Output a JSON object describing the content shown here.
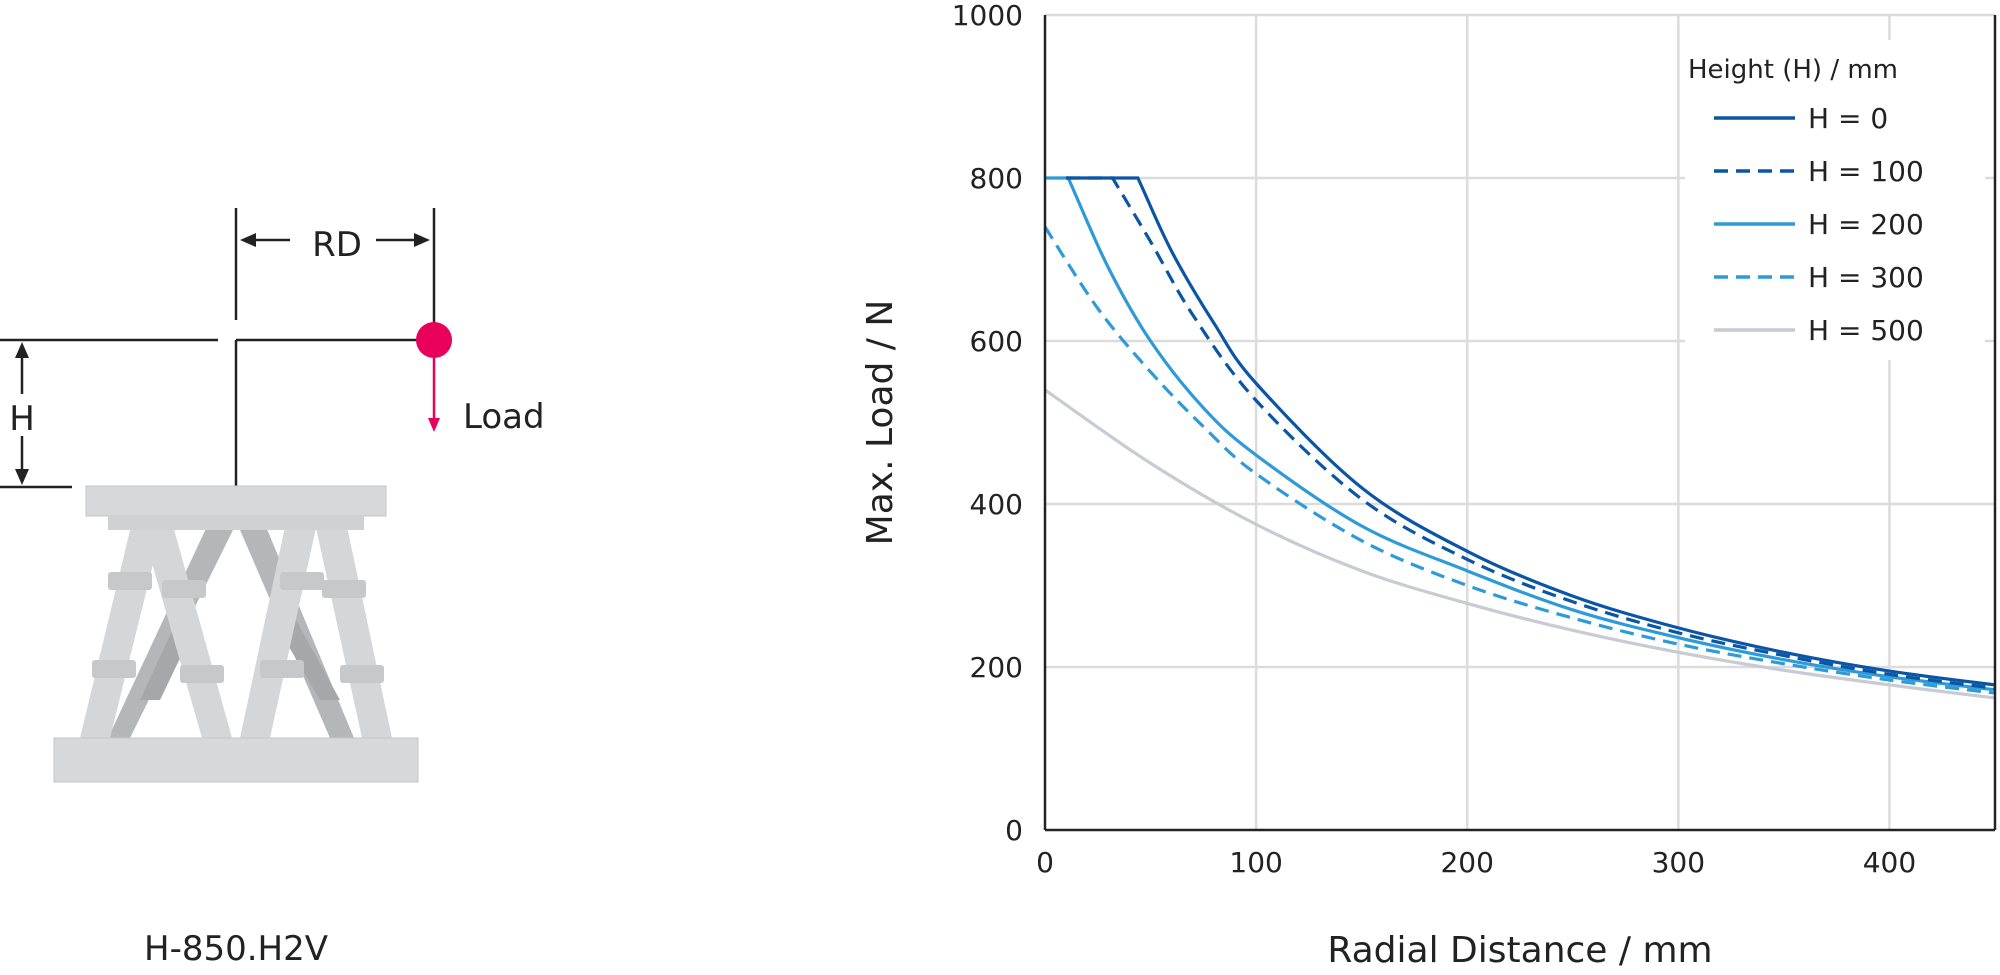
{
  "diagram": {
    "rd_label": "RD",
    "h_label": "H",
    "load_label": "Load",
    "model": "H-850.H2V",
    "load_color": "#e8005a"
  },
  "chart_data": {
    "type": "line",
    "xlabel": "Radial Distance / mm",
    "ylabel": "Max. Load / N",
    "xlim": [
      0,
      450
    ],
    "ylim": [
      0,
      1000
    ],
    "xticks": [
      0,
      100,
      200,
      300,
      400
    ],
    "yticks": [
      0,
      200,
      400,
      600,
      800,
      1000
    ],
    "grid": true,
    "legend_title": "Height (H) / mm",
    "legend_position": "top-right",
    "series": [
      {
        "name": "H = 0",
        "color": "#0a56a5",
        "dash": "solid",
        "points": [
          [
            10,
            800
          ],
          [
            44,
            800
          ],
          [
            60,
            710
          ],
          [
            80,
            622
          ],
          [
            100,
            548
          ],
          [
            150,
            420
          ],
          [
            200,
            342
          ],
          [
            250,
            287
          ],
          [
            300,
            248
          ],
          [
            350,
            218
          ],
          [
            400,
            195
          ],
          [
            450,
            178
          ]
        ]
      },
      {
        "name": "H = 100",
        "color": "#0a56a5",
        "dash": "dashed",
        "points": [
          [
            10,
            800
          ],
          [
            32,
            800
          ],
          [
            50,
            722
          ],
          [
            70,
            632
          ],
          [
            100,
            527
          ],
          [
            150,
            406
          ],
          [
            200,
            332
          ],
          [
            250,
            280
          ],
          [
            300,
            242
          ],
          [
            350,
            214
          ],
          [
            400,
            191
          ],
          [
            450,
            174
          ]
        ]
      },
      {
        "name": "H = 200",
        "color": "#2e9ad8",
        "dash": "solid",
        "points": [
          [
            0,
            800
          ],
          [
            11,
            800
          ],
          [
            30,
            690
          ],
          [
            50,
            600
          ],
          [
            75,
            518
          ],
          [
            100,
            460
          ],
          [
            150,
            373
          ],
          [
            200,
            318
          ],
          [
            250,
            270
          ],
          [
            300,
            236
          ],
          [
            350,
            209
          ],
          [
            400,
            188
          ],
          [
            450,
            172
          ]
        ]
      },
      {
        "name": "H = 300",
        "color": "#2e9ad8",
        "dash": "dashed",
        "points": [
          [
            0,
            740
          ],
          [
            25,
            640
          ],
          [
            50,
            562
          ],
          [
            75,
            495
          ],
          [
            100,
            437
          ],
          [
            150,
            355
          ],
          [
            200,
            300
          ],
          [
            250,
            260
          ],
          [
            300,
            228
          ],
          [
            350,
            204
          ],
          [
            400,
            184
          ],
          [
            450,
            168
          ]
        ]
      },
      {
        "name": "H = 500",
        "color": "#c8cad4",
        "dash": "solid",
        "points": [
          [
            0,
            540
          ],
          [
            50,
            450
          ],
          [
            100,
            375
          ],
          [
            150,
            318
          ],
          [
            200,
            278
          ],
          [
            250,
            245
          ],
          [
            300,
            218
          ],
          [
            350,
            196
          ],
          [
            400,
            178
          ],
          [
            450,
            162
          ]
        ]
      }
    ]
  }
}
